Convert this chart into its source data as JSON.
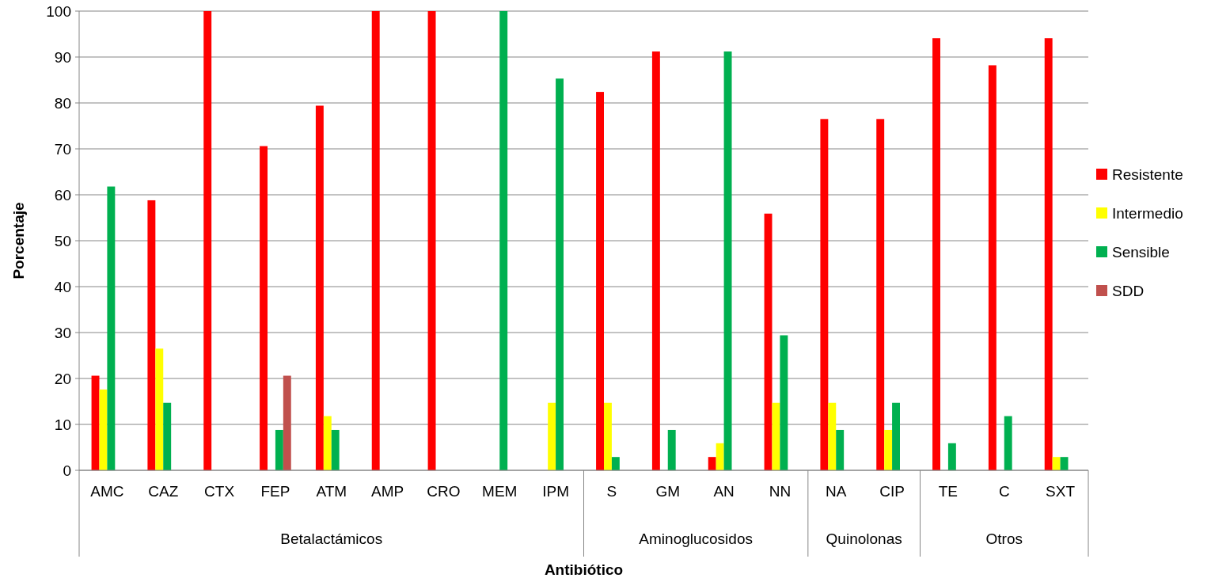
{
  "chart_data": {
    "type": "bar",
    "xlabel": "Antibiótico",
    "ylabel": "Porcentaje",
    "categories": [
      "AMC",
      "CAZ",
      "CTX",
      "FEP",
      "ATM",
      "AMP",
      "CRO",
      "MEM",
      "IPM",
      "S",
      "GM",
      "AN",
      "NN",
      "NA",
      "CIP",
      "TE",
      "C",
      "SXT"
    ],
    "series": [
      {
        "name": "Resistente",
        "color": "#ff0000",
        "values": [
          20.6,
          58.8,
          100,
          70.6,
          79.4,
          100,
          100,
          null,
          null,
          82.4,
          91.2,
          2.9,
          55.9,
          76.5,
          76.5,
          94.1,
          88.2,
          94.1
        ]
      },
      {
        "name": "Intermedio",
        "color": "#ffff00",
        "values": [
          17.6,
          26.5,
          null,
          null,
          11.8,
          null,
          null,
          null,
          14.7,
          14.7,
          null,
          5.9,
          14.7,
          14.7,
          8.8,
          null,
          null,
          2.9
        ]
      },
      {
        "name": "Sensible",
        "color": "#00b050",
        "values": [
          61.8,
          14.7,
          null,
          8.8,
          8.8,
          null,
          null,
          100,
          85.3,
          2.9,
          8.8,
          91.2,
          29.4,
          8.8,
          14.7,
          5.9,
          11.8,
          2.9
        ]
      },
      {
        "name": "SDD",
        "color": "#c0504d",
        "values": [
          null,
          null,
          null,
          20.6,
          null,
          null,
          null,
          null,
          null,
          null,
          null,
          null,
          null,
          null,
          null,
          null,
          null,
          null
        ]
      }
    ],
    "annotations": [
      "Betalactámicos",
      "Aminoglucosidos",
      "Quinolonas",
      "Otros"
    ],
    "ylim": [
      0,
      100
    ],
    "yticks": [
      0,
      10,
      20,
      30,
      40,
      50,
      60,
      70,
      80,
      90,
      100
    ],
    "grid": "y",
    "legend": "right"
  }
}
